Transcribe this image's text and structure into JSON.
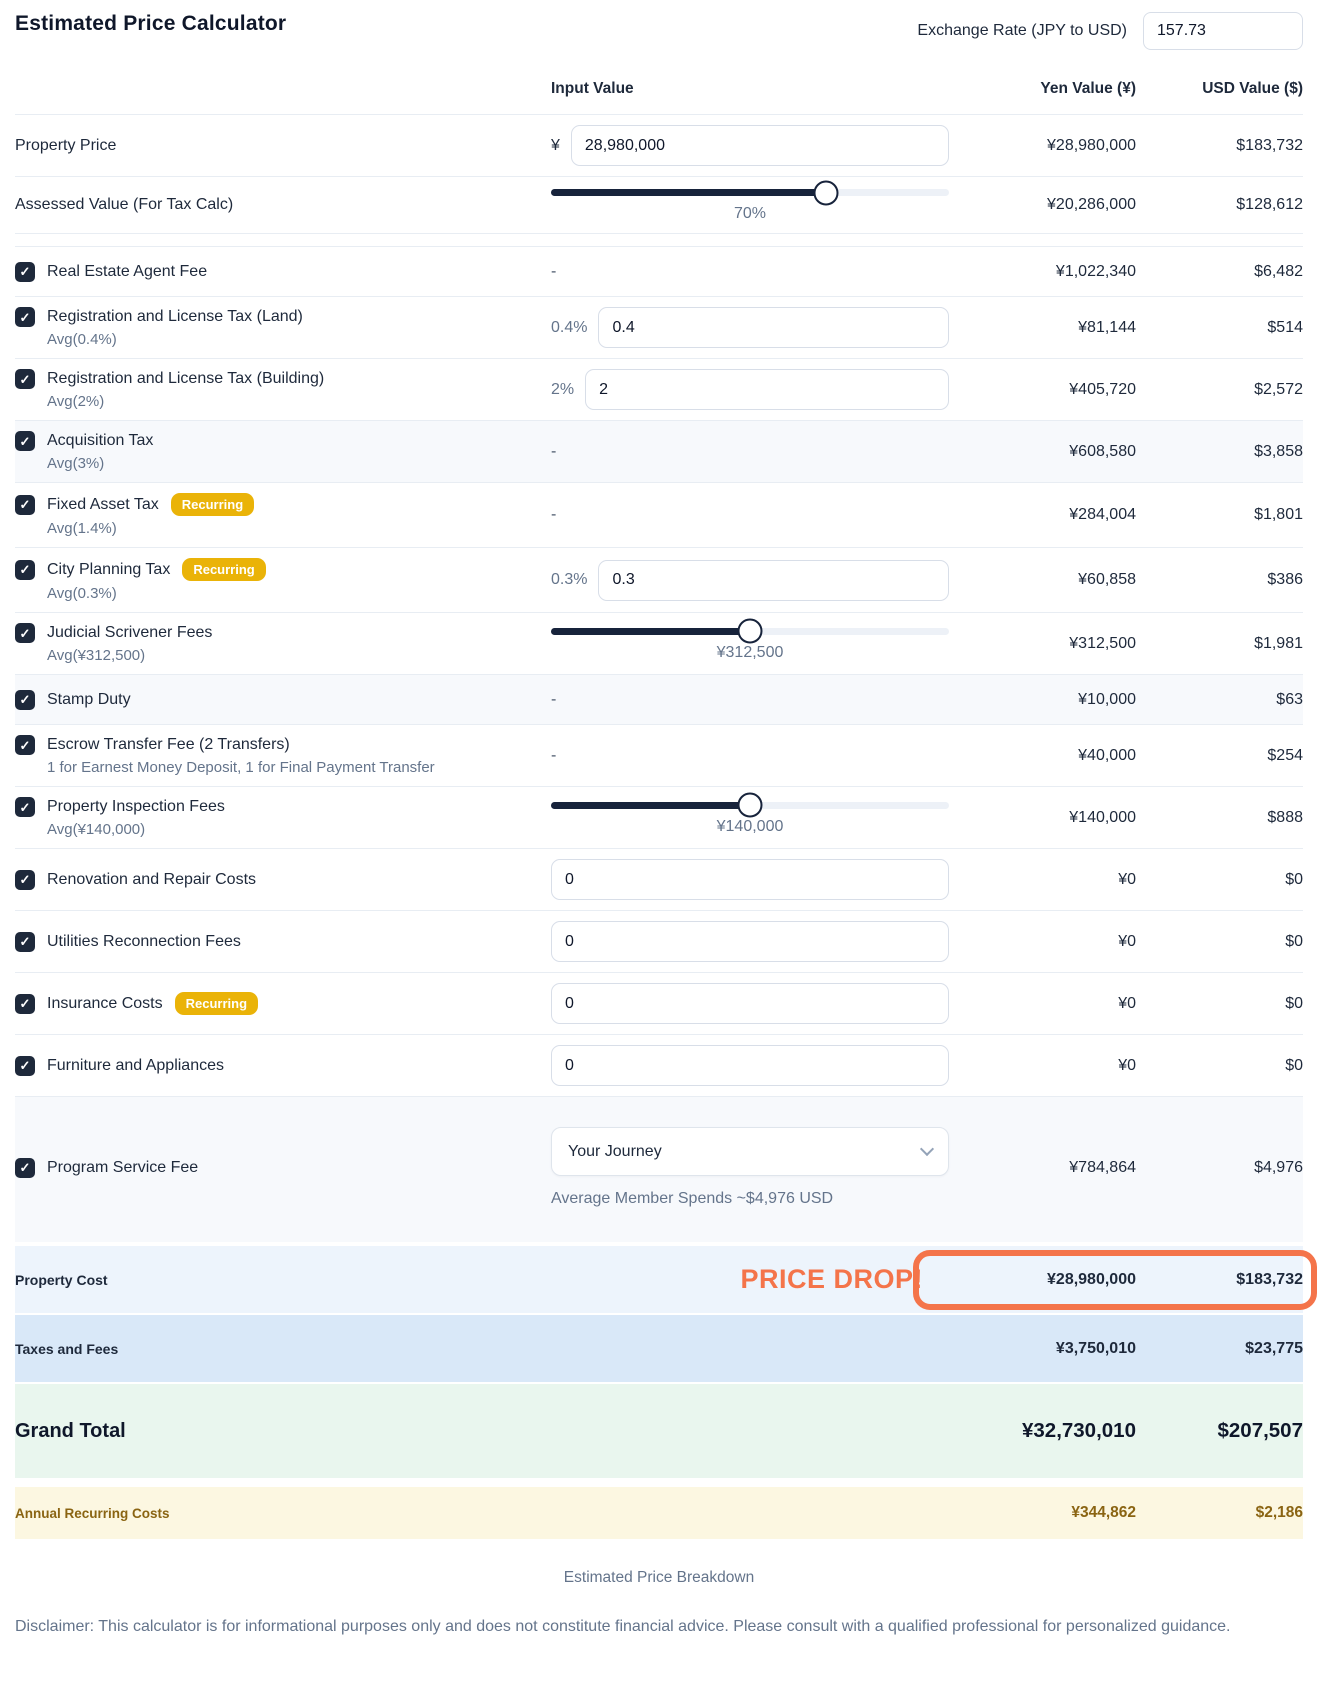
{
  "header": {
    "title": "Estimated Price Calculator",
    "exchange_label": "Exchange Rate (JPY to USD)",
    "exchange_value": "157.73"
  },
  "columns": {
    "input": "Input Value",
    "yen": "Yen Value (¥)",
    "usd": "USD Value ($)"
  },
  "icons": {
    "check": "✓",
    "chevron": "chevron-down"
  },
  "colors": {
    "accent_orange": "#f4744a",
    "badge_gold": "#eab308",
    "checkbox_navy": "#1e293b",
    "slider_fill": "#17233b",
    "property_cost_bg": "#edf4fc",
    "taxes_fees_bg": "#d9e8f8",
    "grand_total_bg": "#e9f6ee",
    "annual_bg": "#fcf7e1",
    "annual_text": "#8a6412"
  },
  "rows": [
    {
      "label": "Property Price",
      "checkbox": false,
      "input": {
        "type": "text",
        "prefix": "¥",
        "prefix_currency": true,
        "value": "28,980,000"
      },
      "yen": "¥28,980,000",
      "usd": "$183,732"
    },
    {
      "label": "Assessed Value (For Tax Calc)",
      "checkbox": false,
      "divider_after": true,
      "input": {
        "type": "slider",
        "percent": 69,
        "label": "70%"
      },
      "yen": "¥20,286,000",
      "usd": "$128,612"
    },
    {
      "label": "Real Estate Agent Fee",
      "checkbox": true,
      "input": {
        "type": "dash",
        "value": "-"
      },
      "yen": "¥1,022,340",
      "usd": "$6,482"
    },
    {
      "label": "Registration and License Tax (Land)",
      "sublabel": "Avg(0.4%)",
      "checkbox": true,
      "input": {
        "type": "text",
        "prefix": "0.4%",
        "value": "0.4"
      },
      "yen": "¥81,144",
      "usd": "$514"
    },
    {
      "label": "Registration and License Tax (Building)",
      "sublabel": "Avg(2%)",
      "checkbox": true,
      "input": {
        "type": "text",
        "prefix": "2%",
        "value": "2"
      },
      "yen": "¥405,720",
      "usd": "$2,572"
    },
    {
      "label": "Acquisition Tax",
      "sublabel": "Avg(3%)",
      "checkbox": true,
      "shaded": true,
      "input": {
        "type": "dash",
        "value": "-"
      },
      "yen": "¥608,580",
      "usd": "$3,858"
    },
    {
      "label": "Fixed Asset Tax",
      "sublabel": "Avg(1.4%)",
      "badge": "Recurring",
      "checkbox": true,
      "input": {
        "type": "dash",
        "value": "-"
      },
      "yen": "¥284,004",
      "usd": "$1,801"
    },
    {
      "label": "City Planning Tax",
      "sublabel": "Avg(0.3%)",
      "badge": "Recurring",
      "checkbox": true,
      "input": {
        "type": "text",
        "prefix": "0.3%",
        "value": "0.3"
      },
      "yen": "¥60,858",
      "usd": "$386"
    },
    {
      "label": "Judicial Scrivener Fees",
      "sublabel": "Avg(¥312,500)",
      "checkbox": true,
      "input": {
        "type": "slider",
        "percent": 50,
        "label": "¥312,500"
      },
      "yen": "¥312,500",
      "usd": "$1,981"
    },
    {
      "label": "Stamp Duty",
      "checkbox": true,
      "shaded": true,
      "input": {
        "type": "dash",
        "value": "-"
      },
      "yen": "¥10,000",
      "usd": "$63"
    },
    {
      "label": "Escrow Transfer Fee (2 Transfers)",
      "sublabel": "1 for Earnest Money Deposit, 1 for Final Payment Transfer",
      "checkbox": true,
      "input": {
        "type": "dash",
        "value": "-"
      },
      "yen": "¥40,000",
      "usd": "$254"
    },
    {
      "label": "Property Inspection Fees",
      "sublabel": "Avg(¥140,000)",
      "checkbox": true,
      "input": {
        "type": "slider",
        "percent": 50,
        "label": "¥140,000"
      },
      "yen": "¥140,000",
      "usd": "$888"
    },
    {
      "label": "Renovation and Repair Costs",
      "checkbox": true,
      "input": {
        "type": "text",
        "value": "0"
      },
      "yen": "¥0",
      "usd": "$0"
    },
    {
      "label": "Utilities Reconnection Fees",
      "checkbox": true,
      "input": {
        "type": "text",
        "value": "0"
      },
      "yen": "¥0",
      "usd": "$0"
    },
    {
      "label": "Insurance Costs",
      "badge": "Recurring",
      "checkbox": true,
      "input": {
        "type": "text",
        "value": "0"
      },
      "yen": "¥0",
      "usd": "$0"
    },
    {
      "label": "Furniture and Appliances",
      "checkbox": true,
      "input": {
        "type": "text",
        "value": "0"
      },
      "yen": "¥0",
      "usd": "$0"
    },
    {
      "label": "Program Service Fee",
      "checkbox": true,
      "shaded": true,
      "program": true,
      "input": {
        "type": "select",
        "value": "Your Journey",
        "note": "Average Member Spends ~$4,976 USD"
      },
      "yen": "¥784,864",
      "usd": "$4,976"
    }
  ],
  "summary": {
    "property_cost": {
      "label": "Property Cost",
      "annotation": "PRICE DROP!",
      "yen": "¥28,980,000",
      "usd": "$183,732"
    },
    "taxes_fees": {
      "label": "Taxes and Fees",
      "yen": "¥3,750,010",
      "usd": "$23,775"
    },
    "grand_total": {
      "label": "Grand Total",
      "yen": "¥32,730,010",
      "usd": "$207,507"
    },
    "annual_recurring": {
      "label": "Annual Recurring Costs",
      "yen": "¥344,862",
      "usd": "$2,186"
    }
  },
  "footer": {
    "breakdown_label": "Estimated Price Breakdown",
    "disclaimer": "Disclaimer: This calculator is for informational purposes only and does not constitute financial advice. Please consult with a qualified professional for personalized guidance."
  }
}
